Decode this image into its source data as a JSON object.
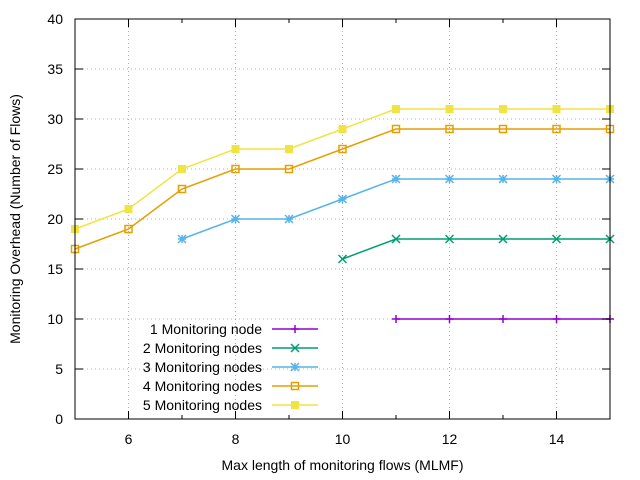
{
  "chart_data": {
    "type": "line",
    "title": "",
    "xlabel": "Max length of monitoring flows (MLMF)",
    "ylabel": "Monitoring Overhead (Number of Flows)",
    "xlim": [
      5,
      15
    ],
    "ylim": [
      0,
      40
    ],
    "xticks": [
      6,
      8,
      10,
      12,
      14
    ],
    "yticks": [
      0,
      5,
      10,
      15,
      20,
      25,
      30,
      35,
      40
    ],
    "grid": true,
    "legend_position": "bottom-center",
    "series": [
      {
        "name": "1 Monitoring node",
        "color": "#9400d3",
        "marker": "plus",
        "points": [
          [
            11,
            10
          ],
          [
            12,
            10
          ],
          [
            13,
            10
          ],
          [
            14,
            10
          ],
          [
            15,
            10
          ]
        ]
      },
      {
        "name": "2 Monitoring nodes",
        "color": "#009e73",
        "marker": "cross",
        "points": [
          [
            10,
            16
          ],
          [
            11,
            18
          ],
          [
            12,
            18
          ],
          [
            13,
            18
          ],
          [
            14,
            18
          ],
          [
            15,
            18
          ]
        ]
      },
      {
        "name": "3 Monitoring nodes",
        "color": "#56b4e9",
        "marker": "star",
        "points": [
          [
            7,
            18
          ],
          [
            8,
            20
          ],
          [
            9,
            20
          ],
          [
            10,
            22
          ],
          [
            11,
            24
          ],
          [
            12,
            24
          ],
          [
            13,
            24
          ],
          [
            14,
            24
          ],
          [
            15,
            24
          ]
        ]
      },
      {
        "name": "4 Monitoring nodes",
        "color": "#e69f00",
        "marker": "square-open",
        "points": [
          [
            5,
            17
          ],
          [
            6,
            19
          ],
          [
            7,
            23
          ],
          [
            8,
            25
          ],
          [
            9,
            25
          ],
          [
            10,
            27
          ],
          [
            11,
            29
          ],
          [
            12,
            29
          ],
          [
            13,
            29
          ],
          [
            14,
            29
          ],
          [
            15,
            29
          ]
        ]
      },
      {
        "name": "5 Monitoring nodes",
        "color": "#f0e442",
        "marker": "square-filled",
        "points": [
          [
            5,
            19
          ],
          [
            6,
            21
          ],
          [
            7,
            25
          ],
          [
            8,
            27
          ],
          [
            9,
            27
          ],
          [
            10,
            29
          ],
          [
            11,
            31
          ],
          [
            12,
            31
          ],
          [
            13,
            31
          ],
          [
            14,
            31
          ],
          [
            15,
            31
          ]
        ]
      }
    ]
  }
}
